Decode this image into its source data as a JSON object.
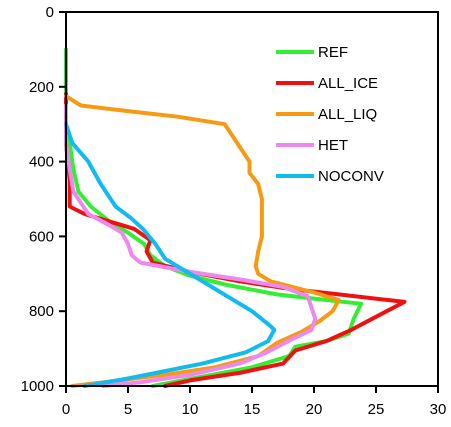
{
  "chart_data": {
    "type": "line",
    "title": "",
    "xlabel": "",
    "ylabel": "",
    "xlim": [
      0,
      30
    ],
    "ylim": [
      1000,
      0
    ],
    "x_ticks": [
      0,
      5,
      10,
      15,
      20,
      25,
      30
    ],
    "y_ticks": [
      0,
      200,
      400,
      600,
      800,
      1000
    ],
    "grid": false,
    "legend_position": "top-right",
    "series": [
      {
        "name": "REF",
        "color": "#33ee33",
        "points": [
          [
            0,
            100
          ],
          [
            0,
            300
          ],
          [
            0.3,
            350
          ],
          [
            0.6,
            420
          ],
          [
            1.0,
            480
          ],
          [
            2,
            520
          ],
          [
            3.5,
            560
          ],
          [
            5,
            590
          ],
          [
            6.3,
            620
          ],
          [
            6.8,
            650
          ],
          [
            8,
            680
          ],
          [
            10,
            705
          ],
          [
            13,
            730
          ],
          [
            17,
            755
          ],
          [
            21,
            770
          ],
          [
            23.8,
            780
          ],
          [
            23.2,
            820
          ],
          [
            22.8,
            860
          ],
          [
            21,
            880
          ],
          [
            18.5,
            895
          ],
          [
            18,
            920
          ],
          [
            15,
            950
          ],
          [
            11,
            975
          ],
          [
            7,
            1000
          ]
        ]
      },
      {
        "name": "ALL_ICE",
        "color": "#ee1111",
        "points": [
          [
            0,
            220
          ],
          [
            0,
            350
          ],
          [
            0.3,
            450
          ],
          [
            0.3,
            520
          ],
          [
            1.5,
            540
          ],
          [
            3.5,
            560
          ],
          [
            5.5,
            580
          ],
          [
            6.8,
            610
          ],
          [
            6.5,
            640
          ],
          [
            7,
            670
          ],
          [
            10,
            695
          ],
          [
            14,
            720
          ],
          [
            18,
            740
          ],
          [
            22,
            755
          ],
          [
            27.3,
            775
          ],
          [
            25,
            815
          ],
          [
            23,
            850
          ],
          [
            21,
            880
          ],
          [
            18.5,
            905
          ],
          [
            17.5,
            940
          ],
          [
            14,
            965
          ],
          [
            10,
            985
          ],
          [
            8,
            1000
          ]
        ]
      },
      {
        "name": "ALL_LIQ",
        "color": "#f59a12",
        "points": [
          [
            0,
            225
          ],
          [
            1.2,
            250
          ],
          [
            5,
            265
          ],
          [
            9,
            280
          ],
          [
            12.8,
            300
          ],
          [
            13.8,
            350
          ],
          [
            14.2,
            370
          ],
          [
            14.8,
            400
          ],
          [
            14.8,
            430
          ],
          [
            15.5,
            460
          ],
          [
            15.8,
            500
          ],
          [
            15.8,
            550
          ],
          [
            15.8,
            600
          ],
          [
            15.5,
            640
          ],
          [
            15.3,
            680
          ],
          [
            15.5,
            700
          ],
          [
            16.5,
            720
          ],
          [
            20,
            750
          ],
          [
            22,
            770
          ],
          [
            21.5,
            800
          ],
          [
            20.5,
            825
          ],
          [
            19,
            855
          ],
          [
            17,
            885
          ],
          [
            15.5,
            920
          ],
          [
            12,
            950
          ],
          [
            8,
            970
          ],
          [
            3,
            990
          ],
          [
            0.5,
            1000
          ]
        ]
      },
      {
        "name": "HET",
        "color": "#ee88ee",
        "points": [
          [
            0,
            250
          ],
          [
            0,
            350
          ],
          [
            0.3,
            420
          ],
          [
            0.6,
            480
          ],
          [
            1.8,
            540
          ],
          [
            3.5,
            570
          ],
          [
            4.5,
            590
          ],
          [
            5,
            620
          ],
          [
            5.3,
            650
          ],
          [
            6,
            670
          ],
          [
            10,
            695
          ],
          [
            14,
            715
          ],
          [
            17.5,
            735
          ],
          [
            19.5,
            760
          ],
          [
            19.8,
            790
          ],
          [
            20.1,
            820
          ],
          [
            19.8,
            850
          ],
          [
            18.2,
            875
          ],
          [
            16.2,
            910
          ],
          [
            14,
            940
          ],
          [
            10,
            970
          ],
          [
            6,
            990
          ],
          [
            3,
            1000
          ]
        ]
      },
      {
        "name": "NOCONV",
        "color": "#11bbee",
        "points": [
          [
            0,
            300
          ],
          [
            0.5,
            350
          ],
          [
            1.8,
            400
          ],
          [
            2.8,
            460
          ],
          [
            4,
            520
          ],
          [
            5.2,
            550
          ],
          [
            6.2,
            580
          ],
          [
            7.2,
            620
          ],
          [
            8,
            660
          ],
          [
            10,
            700
          ],
          [
            12.5,
            750
          ],
          [
            15,
            800
          ],
          [
            16.5,
            840
          ],
          [
            16.8,
            850
          ],
          [
            16.3,
            880
          ],
          [
            14.5,
            910
          ],
          [
            11,
            940
          ],
          [
            5,
            980
          ],
          [
            1.5,
            1000
          ]
        ]
      }
    ]
  }
}
